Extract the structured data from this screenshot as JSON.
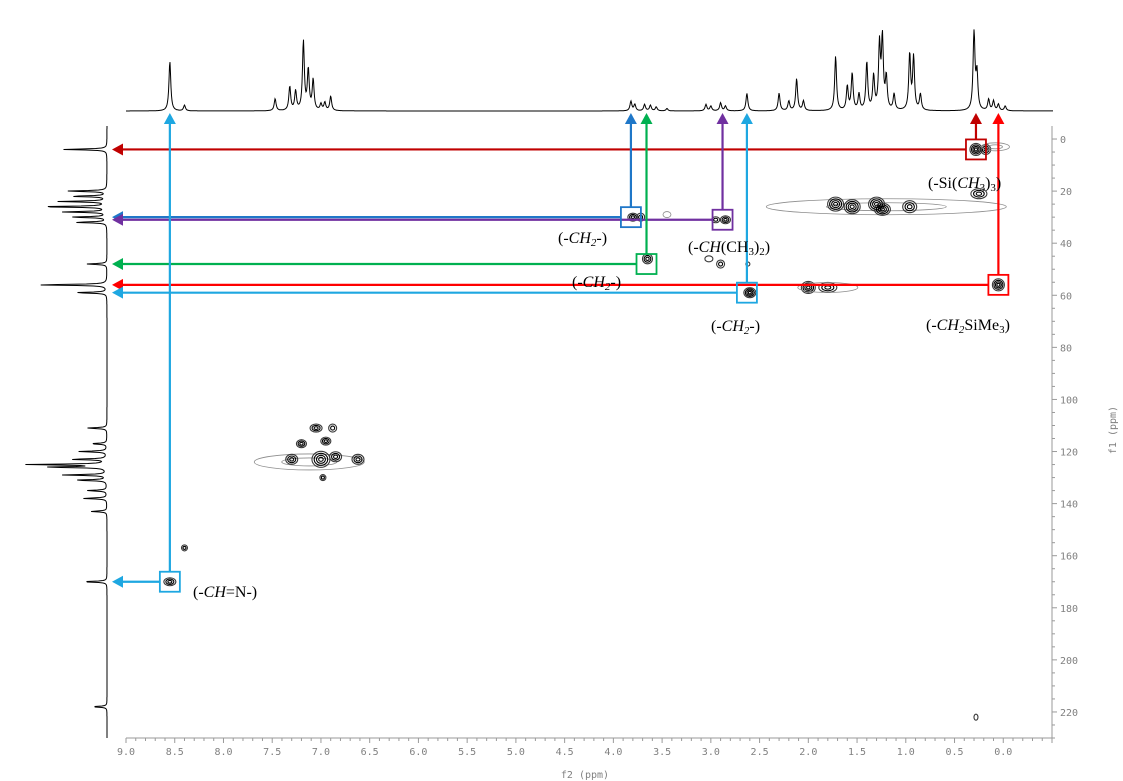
{
  "chart_data": {
    "type": "heatmap",
    "title": "",
    "xlabel": "f2 (ppm)",
    "ylabel": "f1 (ppm)",
    "xlim": [
      9.0,
      -0.5
    ],
    "ylim": [
      -5,
      230
    ],
    "x_ticks": [
      "9.0",
      "8.5",
      "8.0",
      "7.5",
      "7.0",
      "6.5",
      "6.0",
      "5.5",
      "5.0",
      "4.5",
      "4.0",
      "3.5",
      "3.0",
      "2.5",
      "2.0",
      "1.5",
      "1.0",
      "0.5",
      "0.0"
    ],
    "y_ticks": [
      "0",
      "20",
      "40",
      "60",
      "80",
      "100",
      "120",
      "140",
      "160",
      "180",
      "200",
      "220"
    ],
    "colors": {
      "dark_red": "#c00000",
      "red": "#ff0000",
      "blue": "#1f77c8",
      "green": "#00b050",
      "purple": "#7030a0",
      "cyan": "#1ea7e1"
    },
    "annotations": [
      {
        "label": "(-Si(CH3)3)",
        "label_parts": [
          [
            "(-Si(",
            "r"
          ],
          [
            "CH",
            "i"
          ],
          [
            "3",
            "sub"
          ],
          [
            ")",
            "r"
          ],
          [
            "3",
            "sub"
          ],
          [
            ")",
            "r"
          ]
        ],
        "h": 0.28,
        "c": 4,
        "color": "#c00000"
      },
      {
        "label": "(-CH2-)",
        "label_parts": [
          [
            "(-",
            "r"
          ],
          [
            "CH",
            "i"
          ],
          [
            "2",
            "isub"
          ],
          [
            "-)",
            "r"
          ]
        ],
        "h": 3.82,
        "c": 30,
        "color": "#1f77c8"
      },
      {
        "label": "(-CH(CH3)2)",
        "label_parts": [
          [
            "(-",
            "r"
          ],
          [
            "CH",
            "i"
          ],
          [
            "(CH",
            "r"
          ],
          [
            "3",
            "sub"
          ],
          [
            ")",
            "r"
          ],
          [
            "2",
            "sub"
          ],
          [
            ")",
            "r"
          ]
        ],
        "h": 2.88,
        "c": 31,
        "color": "#7030a0"
      },
      {
        "label": "(-CH2-)",
        "label_parts": [
          [
            "(-",
            "r"
          ],
          [
            "CH",
            "i"
          ],
          [
            "2",
            "isub"
          ],
          [
            "-)",
            "r"
          ]
        ],
        "h": 3.66,
        "c": 48,
        "color": "#00b050"
      },
      {
        "label": "(-CH2SiMe3)",
        "label_parts": [
          [
            "(-",
            "r"
          ],
          [
            "CH",
            "i"
          ],
          [
            "2",
            "isub"
          ],
          [
            "SiMe",
            "r"
          ],
          [
            "3",
            "sub"
          ],
          [
            ")",
            "r"
          ]
        ],
        "h": 0.05,
        "c": 56,
        "color": "#ff0000"
      },
      {
        "label": "(-CH2-)",
        "label_parts": [
          [
            "(-",
            "r"
          ],
          [
            "CH",
            "i"
          ],
          [
            "2",
            "isub"
          ],
          [
            "-)",
            "r"
          ]
        ],
        "h": 2.63,
        "c": 59,
        "color": "#1ea7e1"
      },
      {
        "label": "(-CH=N-)",
        "label_parts": [
          [
            "(-",
            "r"
          ],
          [
            "CH",
            "i"
          ],
          [
            "=N-)",
            "r"
          ]
        ],
        "h": 8.55,
        "c": 170,
        "color": "#1ea7e1"
      }
    ],
    "f2_peaks": [
      {
        "h": 8.55,
        "i": 0.62
      },
      {
        "h": 8.4,
        "i": 0.07
      },
      {
        "h": 7.47,
        "i": 0.15
      },
      {
        "h": 7.32,
        "i": 0.3
      },
      {
        "h": 7.26,
        "i": 0.24
      },
      {
        "h": 7.18,
        "i": 0.86
      },
      {
        "h": 7.13,
        "i": 0.5
      },
      {
        "h": 7.08,
        "i": 0.38
      },
      {
        "h": 7.0,
        "i": 0.08
      },
      {
        "h": 6.96,
        "i": 0.1
      },
      {
        "h": 6.9,
        "i": 0.18
      },
      {
        "h": 3.82,
        "i": 0.12
      },
      {
        "h": 3.78,
        "i": 0.08
      },
      {
        "h": 3.68,
        "i": 0.08
      },
      {
        "h": 3.62,
        "i": 0.07
      },
      {
        "h": 3.56,
        "i": 0.05
      },
      {
        "h": 3.45,
        "i": 0.03
      },
      {
        "h": 3.05,
        "i": 0.08
      },
      {
        "h": 3.0,
        "i": 0.06
      },
      {
        "h": 2.9,
        "i": 0.1
      },
      {
        "h": 2.85,
        "i": 0.06
      },
      {
        "h": 2.63,
        "i": 0.22
      },
      {
        "h": 2.3,
        "i": 0.22
      },
      {
        "h": 2.2,
        "i": 0.12
      },
      {
        "h": 2.12,
        "i": 0.4
      },
      {
        "h": 2.05,
        "i": 0.12
      },
      {
        "h": 1.72,
        "i": 0.68
      },
      {
        "h": 1.6,
        "i": 0.3
      },
      {
        "h": 1.55,
        "i": 0.46
      },
      {
        "h": 1.48,
        "i": 0.2
      },
      {
        "h": 1.4,
        "i": 0.6
      },
      {
        "h": 1.33,
        "i": 0.42
      },
      {
        "h": 1.27,
        "i": 0.8
      },
      {
        "h": 1.24,
        "i": 0.88
      },
      {
        "h": 1.2,
        "i": 0.4
      },
      {
        "h": 1.12,
        "i": 0.2
      },
      {
        "h": 0.96,
        "i": 0.7
      },
      {
        "h": 0.92,
        "i": 0.66
      },
      {
        "h": 0.85,
        "i": 0.2
      },
      {
        "h": 0.3,
        "i": 1.0
      },
      {
        "h": 0.27,
        "i": 0.45
      },
      {
        "h": 0.15,
        "i": 0.14
      },
      {
        "h": 0.1,
        "i": 0.12
      },
      {
        "h": 0.05,
        "i": 0.08
      },
      {
        "h": -0.02,
        "i": 0.06
      }
    ],
    "f1_peaks": [
      {
        "c": 4,
        "i": 0.55
      },
      {
        "c": 20,
        "i": 0.5
      },
      {
        "c": 22,
        "i": 0.45
      },
      {
        "c": 24,
        "i": 0.6
      },
      {
        "c": 26,
        "i": 0.85
      },
      {
        "c": 28,
        "i": 0.55
      },
      {
        "c": 30,
        "i": 0.45
      },
      {
        "c": 32,
        "i": 0.4
      },
      {
        "c": 48,
        "i": 0.25
      },
      {
        "c": 56,
        "i": 0.88
      },
      {
        "c": 59,
        "i": 0.4
      },
      {
        "c": 111,
        "i": 0.25
      },
      {
        "c": 117,
        "i": 0.2
      },
      {
        "c": 120,
        "i": 0.35
      },
      {
        "c": 123,
        "i": 0.45
      },
      {
        "c": 125,
        "i": 1.0
      },
      {
        "c": 126,
        "i": 0.75
      },
      {
        "c": 129,
        "i": 0.55
      },
      {
        "c": 131,
        "i": 0.4
      },
      {
        "c": 135,
        "i": 0.25
      },
      {
        "c": 138,
        "i": 0.3
      },
      {
        "c": 143,
        "i": 0.2
      },
      {
        "c": 170,
        "i": 0.3
      },
      {
        "c": 218,
        "i": 0.18
      }
    ],
    "cross_peaks": [
      {
        "h": 0.28,
        "c": 4,
        "w": 6,
        "ht": 6,
        "n": 4
      },
      {
        "h": 0.18,
        "c": 4,
        "w": 5,
        "ht": 5,
        "n": 3
      },
      {
        "h": 0.08,
        "c": 3,
        "w": 14,
        "ht": 4,
        "n": 2,
        "light": true
      },
      {
        "h": 0.25,
        "c": 21,
        "w": 8,
        "ht": 5,
        "n": 3
      },
      {
        "h": 3.8,
        "c": 30,
        "w": 5,
        "ht": 4,
        "n": 3
      },
      {
        "h": 3.72,
        "c": 30,
        "w": 4,
        "ht": 4,
        "n": 2
      },
      {
        "h": 3.45,
        "c": 29,
        "w": 4,
        "ht": 3,
        "n": 1,
        "light": true
      },
      {
        "h": 2.85,
        "c": 31,
        "w": 5,
        "ht": 4,
        "n": 3
      },
      {
        "h": 2.95,
        "c": 31,
        "w": 4,
        "ht": 3,
        "n": 2
      },
      {
        "h": 1.2,
        "c": 26,
        "w": 120,
        "ht": 8,
        "n": 2,
        "light": true
      },
      {
        "h": 1.72,
        "c": 25,
        "w": 8,
        "ht": 7,
        "n": 4
      },
      {
        "h": 1.55,
        "c": 26,
        "w": 8,
        "ht": 7,
        "n": 4
      },
      {
        "h": 1.3,
        "c": 25,
        "w": 8,
        "ht": 7,
        "n": 4
      },
      {
        "h": 1.24,
        "c": 27,
        "w": 8,
        "ht": 6,
        "n": 4
      },
      {
        "h": 0.96,
        "c": 26,
        "w": 7,
        "ht": 6,
        "n": 3
      },
      {
        "h": 3.65,
        "c": 46,
        "w": 5,
        "ht": 5,
        "n": 3
      },
      {
        "h": 2.9,
        "c": 48,
        "w": 4,
        "ht": 4,
        "n": 2
      },
      {
        "h": 2.62,
        "c": 48,
        "w": 2,
        "ht": 2,
        "n": 1
      },
      {
        "h": 2.6,
        "c": 59,
        "w": 6,
        "ht": 5,
        "n": 4
      },
      {
        "h": 2.0,
        "c": 57,
        "w": 7,
        "ht": 6,
        "n": 4
      },
      {
        "h": 1.8,
        "c": 57,
        "w": 9,
        "ht": 5,
        "n": 3
      },
      {
        "h": 1.8,
        "c": 57,
        "w": 30,
        "ht": 5,
        "n": 1,
        "light": true
      },
      {
        "h": 0.05,
        "c": 56,
        "w": 6,
        "ht": 6,
        "n": 4
      },
      {
        "h": 7.05,
        "c": 111,
        "w": 6,
        "ht": 4,
        "n": 3
      },
      {
        "h": 6.88,
        "c": 111,
        "w": 4,
        "ht": 4,
        "n": 2
      },
      {
        "h": 7.2,
        "c": 117,
        "w": 5,
        "ht": 4,
        "n": 3
      },
      {
        "h": 6.95,
        "c": 116,
        "w": 5,
        "ht": 4,
        "n": 3
      },
      {
        "h": 7.12,
        "c": 124,
        "w": 55,
        "ht": 8,
        "n": 2,
        "light": true
      },
      {
        "h": 7.3,
        "c": 123,
        "w": 6,
        "ht": 5,
        "n": 3
      },
      {
        "h": 7.0,
        "c": 123,
        "w": 9,
        "ht": 8,
        "n": 4
      },
      {
        "h": 6.85,
        "c": 122,
        "w": 6,
        "ht": 5,
        "n": 3
      },
      {
        "h": 6.62,
        "c": 123,
        "w": 6,
        "ht": 5,
        "n": 3
      },
      {
        "h": 6.98,
        "c": 130,
        "w": 3,
        "ht": 3,
        "n": 2
      },
      {
        "h": 8.4,
        "c": 157,
        "w": 3,
        "ht": 3,
        "n": 2
      },
      {
        "h": 8.55,
        "c": 170,
        "w": 6,
        "ht": 4,
        "n": 3
      },
      {
        "h": 3.02,
        "c": 46,
        "w": 4,
        "ht": 3,
        "n": 1
      },
      {
        "h": 0.28,
        "c": 222,
        "w": 2,
        "ht": 3,
        "n": 1
      }
    ]
  }
}
